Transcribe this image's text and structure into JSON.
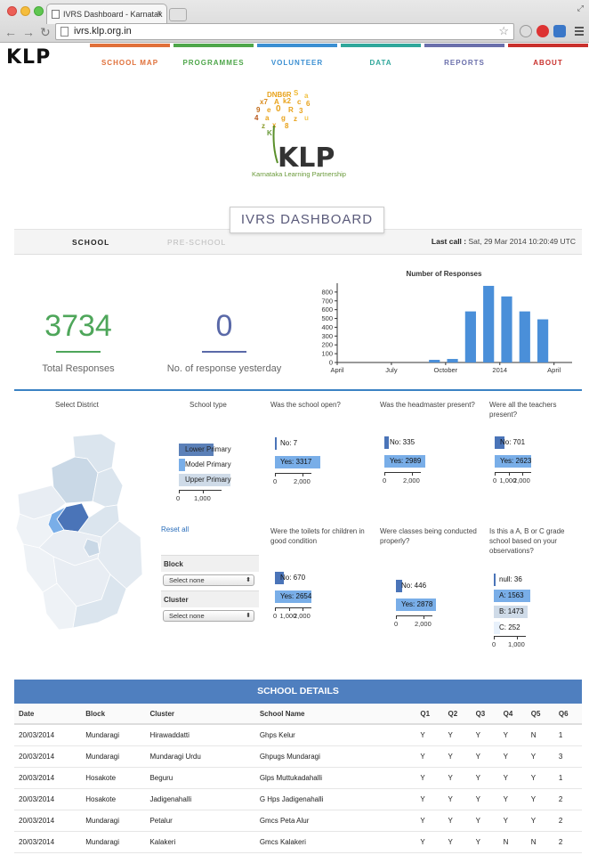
{
  "browser": {
    "tab_title": "IVRS Dashboard - Karnatak",
    "tab_close": "×",
    "url": "ivrs.klp.org.in",
    "nav_glyphs": "←→↻",
    "star": "☆"
  },
  "header": {
    "logo": "KLP",
    "nav": [
      {
        "label": "SCHOOL MAP",
        "color": "#e0703a"
      },
      {
        "label": "PROGRAMMES",
        "color": "#4ea64a"
      },
      {
        "label": "VOLUNTEER",
        "color": "#3b8fd2"
      },
      {
        "label": "DATA",
        "color": "#2fa79b"
      },
      {
        "label": "REPORTS",
        "color": "#6a6fab"
      },
      {
        "label": "ABOUT",
        "color": "#c9302c"
      }
    ]
  },
  "brand": {
    "mark": "KLP",
    "tagline": "Karnataka Learning Partnership"
  },
  "dashboard": {
    "title": "IVRS DASHBOARD",
    "tabs": [
      "SCHOOL",
      "PRE-SCHOOL"
    ],
    "last_call_label": "Last call :",
    "last_call_value": "Sat, 29 Mar 2014 10:20:49 UTC"
  },
  "stats": {
    "total": "3734",
    "total_label": "Total Responses",
    "yesterday": "0",
    "yesterday_label": "No. of response yesterday"
  },
  "chart_data": {
    "type": "bar",
    "title": "Number of Responses",
    "x": [
      "2013-09",
      "2013-10",
      "2013-11",
      "2013-12",
      "2014-01",
      "2014-02",
      "2014-03"
    ],
    "values": [
      30,
      40,
      580,
      870,
      750,
      580,
      490
    ],
    "ylim": [
      0,
      900
    ],
    "yticks": [
      0,
      100,
      200,
      300,
      400,
      500,
      600,
      700,
      800
    ],
    "xtick_labels": [
      "April",
      "July",
      "October",
      "2014",
      "April"
    ],
    "color": "#4a8fd9"
  },
  "filters": {
    "district_title": "Select District",
    "school_type_title": "School type",
    "school_types": [
      "Lower Primary",
      "Model Primary",
      "Upper Primary"
    ],
    "school_type_axis": [
      "0",
      "1,000"
    ],
    "reset": "Reset all",
    "block_label": "Block",
    "block_value": "Select none",
    "cluster_label": "Cluster",
    "cluster_value": "Select none"
  },
  "questions": [
    {
      "title": "Was the school open?",
      "bars": [
        "No: 7",
        "Yes: 3317"
      ],
      "axis": [
        "0",
        "2,000"
      ]
    },
    {
      "title": "Was the headmaster present?",
      "bars": [
        "No: 335",
        "Yes: 2989"
      ],
      "axis": [
        "0",
        "2,000"
      ]
    },
    {
      "title": "Were all the teachers present?",
      "bars": [
        "No: 701",
        "Yes: 2623"
      ],
      "axis": [
        "0",
        "1,000",
        "2,000"
      ]
    },
    {
      "title": "Were the toilets for children in good condition",
      "bars": [
        "No: 670",
        "Yes: 2654"
      ],
      "axis": [
        "0",
        "1,000",
        "2,000"
      ]
    },
    {
      "title": "Were classes being conducted properly?",
      "bars": [
        "No: 446",
        "Yes: 2878"
      ],
      "axis": [
        "0",
        "2,000"
      ]
    },
    {
      "title": "Is this a A, B or C grade school based on your observations?",
      "bars": [
        "null: 36",
        "A: 1563",
        "B: 1473",
        "C: 252"
      ],
      "axis": [
        "0",
        "1,000"
      ]
    }
  ],
  "details": {
    "title": "SCHOOL DETAILS",
    "columns": [
      "Date",
      "Block",
      "Cluster",
      "School Name",
      "Q1",
      "Q2",
      "Q3",
      "Q4",
      "Q5",
      "Q6"
    ],
    "rows": [
      [
        "20/03/2014",
        "Mundaragi",
        "Hirawaddatti",
        "Ghps Kelur",
        "Y",
        "Y",
        "Y",
        "Y",
        "N",
        "1"
      ],
      [
        "20/03/2014",
        "Mundaragi",
        "Mundaragi Urdu",
        "Ghpugs Mundaragi",
        "Y",
        "Y",
        "Y",
        "Y",
        "Y",
        "3"
      ],
      [
        "20/03/2014",
        "Hosakote",
        "Beguru",
        "Glps Muttukadahalli",
        "Y",
        "Y",
        "Y",
        "Y",
        "Y",
        "1"
      ],
      [
        "20/03/2014",
        "Hosakote",
        "Jadigenahalli",
        "G Hps Jadigenahalli",
        "Y",
        "Y",
        "Y",
        "Y",
        "Y",
        "2"
      ],
      [
        "20/03/2014",
        "Mundaragi",
        "Petalur",
        "Gmcs Peta Alur",
        "Y",
        "Y",
        "Y",
        "Y",
        "Y",
        "2"
      ],
      [
        "20/03/2014",
        "Mundaragi",
        "Kalakeri",
        "Gmcs Kalakeri",
        "Y",
        "Y",
        "Y",
        "N",
        "N",
        "2"
      ]
    ]
  }
}
